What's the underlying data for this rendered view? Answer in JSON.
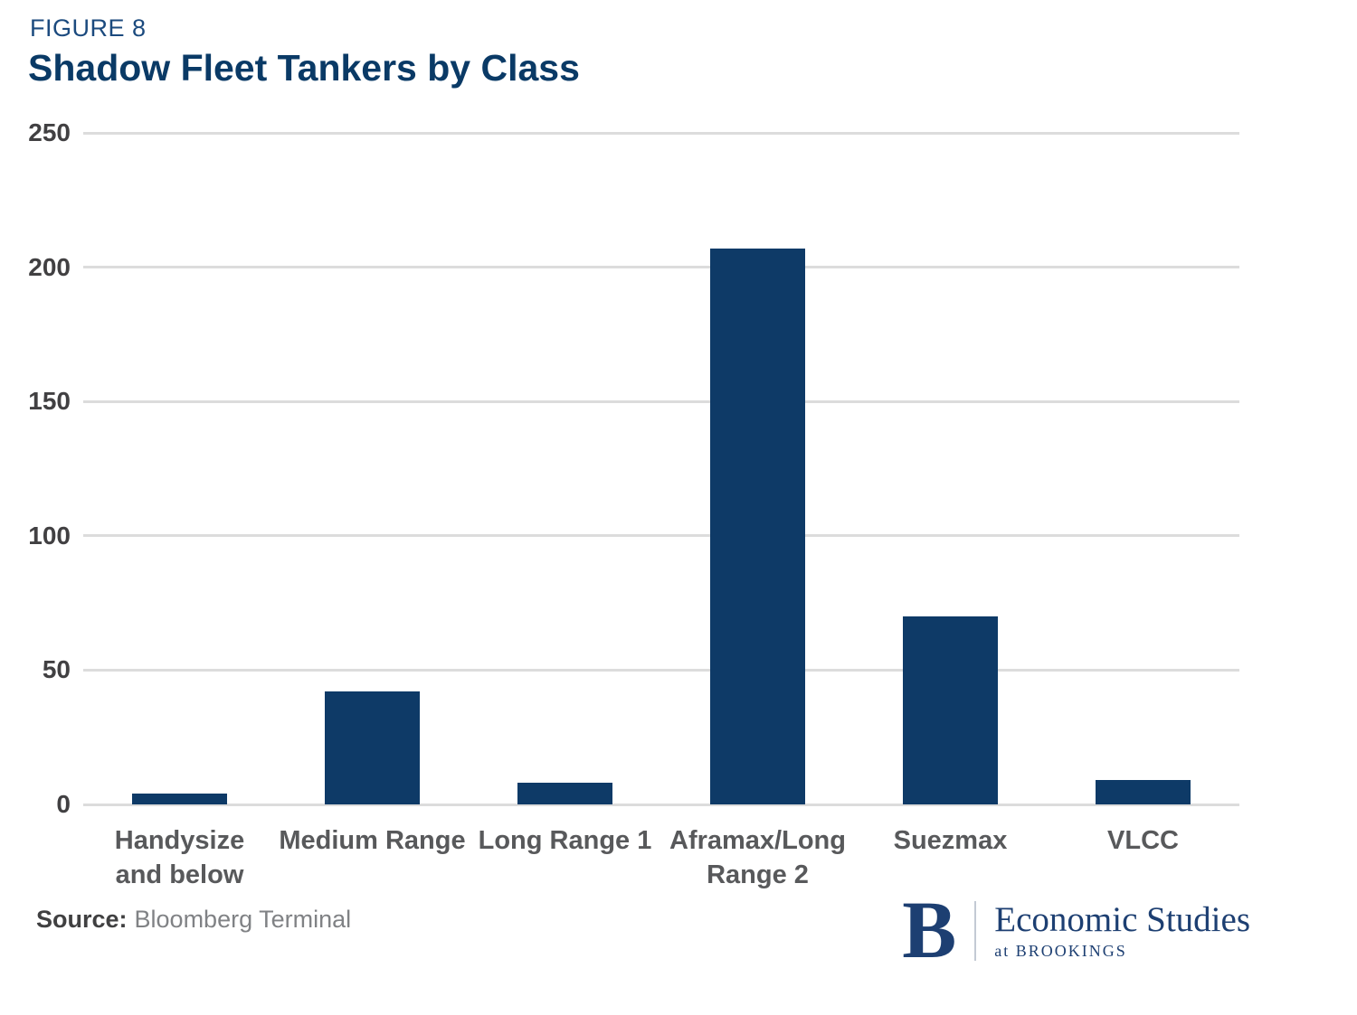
{
  "figure_label": "FIGURE 8",
  "title": "Shadow Fleet Tankers by Class",
  "source": {
    "label": "Source:",
    "text": "Bloomberg Terminal"
  },
  "logo": {
    "letter": "B",
    "line1": "Economic Studies",
    "line2": "at BROOKINGS"
  },
  "colors": {
    "bar": "#0e3a67",
    "title": "#0a3a66",
    "figure_label": "#1b4a7e",
    "grid": "#dcdcdc",
    "axis_text": "#414042",
    "category_text": "#58595b",
    "logo_navy": "#1d3f72"
  },
  "chart_data": {
    "type": "bar",
    "categories": [
      "Handysize\nand below",
      "Medium Range",
      "Long Range 1",
      "Aframax/Long\nRange 2",
      "Suezmax",
      "VLCC"
    ],
    "values": [
      4,
      42,
      8,
      207,
      70,
      9
    ],
    "title": "Shadow Fleet Tankers by Class",
    "xlabel": "",
    "ylabel": "",
    "ylim": [
      0,
      250
    ],
    "yticks": [
      0,
      50,
      100,
      150,
      200,
      250
    ],
    "grid": true,
    "legend": false
  }
}
